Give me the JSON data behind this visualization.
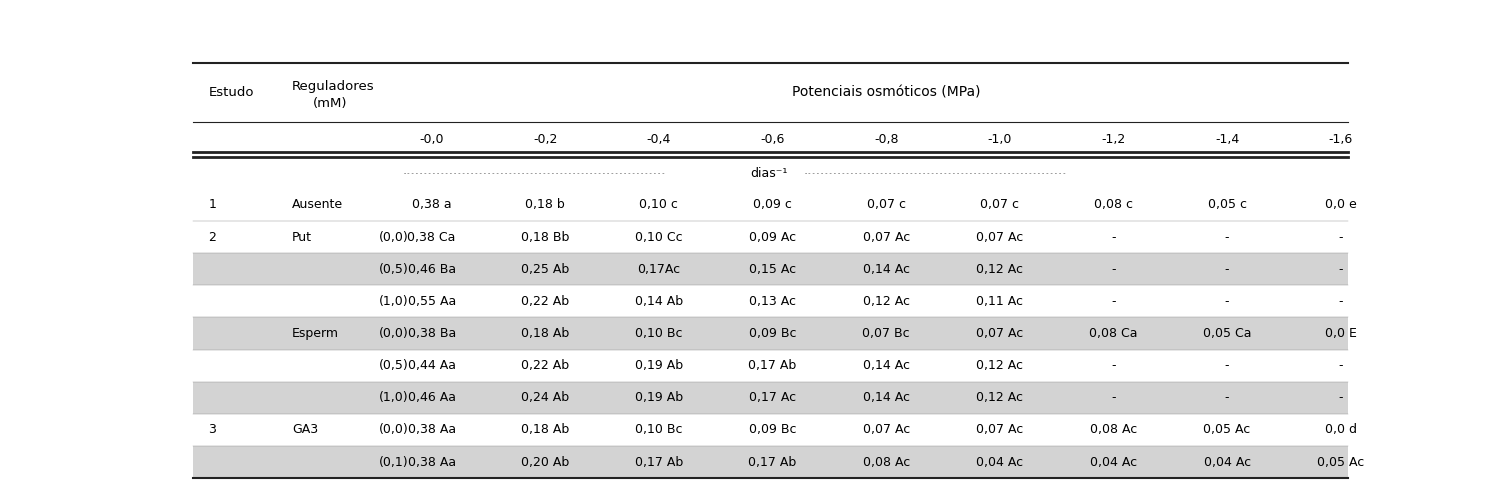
{
  "fig_width": 15.0,
  "fig_height": 4.8,
  "dpi": 100,
  "bg_color": "#ffffff",
  "row_bg_gray": "#d3d3d3",
  "row_bg_white": "#ffffff",
  "potentials": [
    "-0,0",
    "-0,2",
    "-0,4",
    "-0,6",
    "-0,8",
    "-1,0",
    "-1,2",
    "-1,4",
    "-1,6"
  ],
  "rows": [
    {
      "estudo": "1",
      "reg": "Ausente",
      "conc": "",
      "vals": [
        "0,38 a",
        "0,18 b",
        "0,10 c",
        "0,09 c",
        "0,07 c",
        "0,07 c",
        "0,08 c",
        "0,05 c",
        "0,0 e"
      ],
      "gray": false
    },
    {
      "estudo": "2",
      "reg": "Put",
      "conc": "(0,0)",
      "vals": [
        "0,38 Ca",
        "0,18 Bb",
        "0,10 Cc",
        "0,09 Ac",
        "0,07 Ac",
        "0,07 Ac",
        "-",
        "-",
        "-"
      ],
      "gray": false
    },
    {
      "estudo": "",
      "reg": "",
      "conc": "(0,5)",
      "vals": [
        "0,46 Ba",
        "0,25 Ab",
        "0,17Ac",
        "0,15 Ac",
        "0,14 Ac",
        "0,12 Ac",
        "-",
        "-",
        "-"
      ],
      "gray": true
    },
    {
      "estudo": "",
      "reg": "",
      "conc": "(1,0)",
      "vals": [
        "0,55 Aa",
        "0,22 Ab",
        "0,14 Ab",
        "0,13 Ac",
        "0,12 Ac",
        "0,11 Ac",
        "-",
        "-",
        "-"
      ],
      "gray": false
    },
    {
      "estudo": "",
      "reg": "Esperm",
      "conc": "(0,0)",
      "vals": [
        "0,38 Ba",
        "0,18 Ab",
        "0,10 Bc",
        "0,09 Bc",
        "0,07 Bc",
        "0,07 Ac",
        "0,08 Ca",
        "0,05 Ca",
        "0,0 E"
      ],
      "gray": true
    },
    {
      "estudo": "",
      "reg": "",
      "conc": "(0,5)",
      "vals": [
        "0,44 Aa",
        "0,22 Ab",
        "0,19 Ab",
        "0,17 Ab",
        "0,14 Ac",
        "0,12 Ac",
        "-",
        "-",
        "-"
      ],
      "gray": false
    },
    {
      "estudo": "",
      "reg": "",
      "conc": "(1,0)",
      "vals": [
        "0,46 Aa",
        "0,24 Ab",
        "0,19 Ab",
        "0,17 Ac",
        "0,14 Ac",
        "0,12 Ac",
        "-",
        "-",
        "-"
      ],
      "gray": true
    },
    {
      "estudo": "3",
      "reg": "GA3",
      "conc": "(0,0)",
      "vals": [
        "0,38 Aa",
        "0,18 Ab",
        "0,10 Bc",
        "0,09 Bc",
        "0,07 Ac",
        "0,07 Ac",
        "0,08 Ac",
        "0,05 Ac",
        "0,0 d"
      ],
      "gray": false
    },
    {
      "estudo": "",
      "reg": "",
      "conc": "(0,1)",
      "vals": [
        "0,38 Aa",
        "0,20 Ab",
        "0,17 Ab",
        "0,17 Ab",
        "0,08 Ac",
        "0,04 Ac",
        "0,04 Ac",
        "0,04 Ac",
        "0,05 Ac"
      ],
      "gray": true
    }
  ],
  "header_main": "Potenciais osmóticos (MPa)",
  "col1_label": "Estudo",
  "col2_label_a": "Reguladores",
  "col2_label_b": "(mM)",
  "dias_label": "dias⁻¹"
}
